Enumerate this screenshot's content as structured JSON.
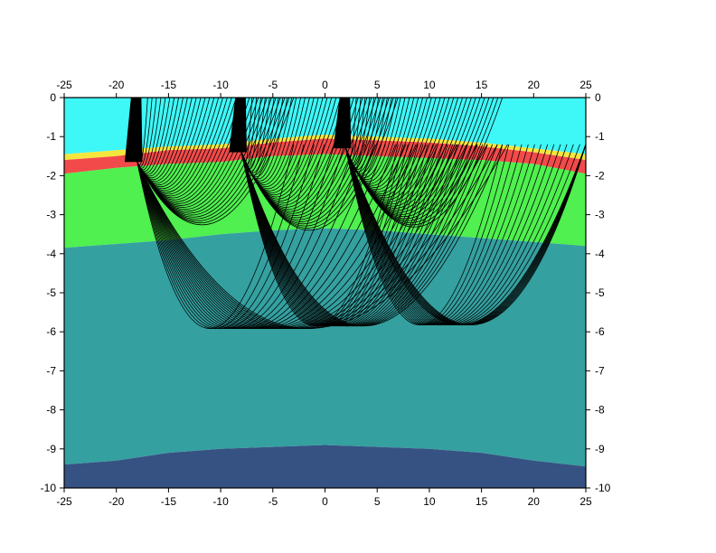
{
  "chart_data": {
    "type": "area",
    "title": "",
    "xlabel": "",
    "ylabel": "",
    "xlim": [
      -25,
      25
    ],
    "ylim": [
      -10,
      0
    ],
    "x_ticks": [
      -25,
      -20,
      -15,
      -10,
      -5,
      0,
      5,
      10,
      15,
      20,
      25
    ],
    "y_ticks": [
      0,
      -1,
      -2,
      -3,
      -4,
      -5,
      -6,
      -7,
      -8,
      -9,
      -10
    ],
    "x_tick_labels": [
      "-25",
      "-20",
      "-15",
      "-10",
      "-5",
      "0",
      "5",
      "10",
      "15",
      "20",
      "25"
    ],
    "y_tick_labels": [
      "0",
      "-1",
      "-2",
      "-3",
      "-4",
      "-5",
      "-6",
      "-7",
      "-8",
      "-9",
      "-10"
    ],
    "ticks_on": [
      "bottom",
      "top",
      "left",
      "right"
    ],
    "grid": false,
    "legend": false,
    "layers": [
      {
        "name": "water",
        "color": "#3ef7f7",
        "bottom": {
          "x": [
            -25,
            -20,
            -15,
            -10,
            -5,
            0,
            5,
            10,
            15,
            20,
            25
          ],
          "y": [
            -1.45,
            -1.35,
            -1.25,
            -1.2,
            -1.05,
            -0.95,
            -1.0,
            -1.05,
            -1.15,
            -1.3,
            -1.45
          ]
        }
      },
      {
        "name": "thin-layer",
        "color": "#f5e63d",
        "bottom": {
          "x": [
            -25,
            -20,
            -15,
            -10,
            -5,
            0,
            5,
            10,
            15,
            20,
            25
          ],
          "y": [
            -1.6,
            -1.5,
            -1.35,
            -1.3,
            -1.15,
            -1.05,
            -1.1,
            -1.15,
            -1.25,
            -1.4,
            -1.6
          ]
        }
      },
      {
        "name": "red-layer",
        "color": "#f24a4a",
        "bottom": {
          "x": [
            -25,
            -20,
            -15,
            -10,
            -5,
            0,
            5,
            10,
            15,
            20,
            25
          ],
          "y": [
            -1.95,
            -1.8,
            -1.7,
            -1.65,
            -1.5,
            -1.45,
            -1.5,
            -1.55,
            -1.6,
            -1.7,
            -1.95
          ]
        }
      },
      {
        "name": "green-layer",
        "color": "#4ff04f",
        "bottom": {
          "x": [
            -25,
            -20,
            -15,
            -10,
            -5,
            0,
            5,
            10,
            15,
            20,
            25
          ],
          "y": [
            -3.85,
            -3.75,
            -3.65,
            -3.5,
            -3.4,
            -3.35,
            -3.4,
            -3.5,
            -3.6,
            -3.7,
            -3.8
          ]
        }
      },
      {
        "name": "teal-layer",
        "color": "#35a0a0",
        "bottom": {
          "x": [
            -25,
            -20,
            -15,
            -10,
            -5,
            0,
            5,
            10,
            15,
            20,
            25
          ],
          "y": [
            -9.4,
            -9.3,
            -9.1,
            -9.0,
            -8.95,
            -8.9,
            -8.95,
            -9.0,
            -9.1,
            -9.3,
            -9.45
          ]
        }
      },
      {
        "name": "basement",
        "color": "#355283",
        "bottom": {
          "x": [
            -25,
            25
          ],
          "y": [
            -10,
            -10
          ]
        }
      }
    ],
    "ray_fans": [
      {
        "source": [
          -18,
          -1.65
        ],
        "downgoing_turn_depth_range": [
          -1.9,
          -3.6
        ],
        "deep_ray_ends_x": [
          -9,
          11.5
        ]
      },
      {
        "source": [
          -8,
          -1.4
        ],
        "downgoing_turn_depth_range": [
          -1.9,
          -3.7
        ],
        "deep_ray_ends_x": [
          1,
          11
        ]
      },
      {
        "source": [
          2,
          -1.3
        ],
        "downgoing_turn_depth_range": [
          -1.8,
          -3.6
        ],
        "deep_ray_ends_x": [
          11,
          24
        ]
      }
    ]
  }
}
